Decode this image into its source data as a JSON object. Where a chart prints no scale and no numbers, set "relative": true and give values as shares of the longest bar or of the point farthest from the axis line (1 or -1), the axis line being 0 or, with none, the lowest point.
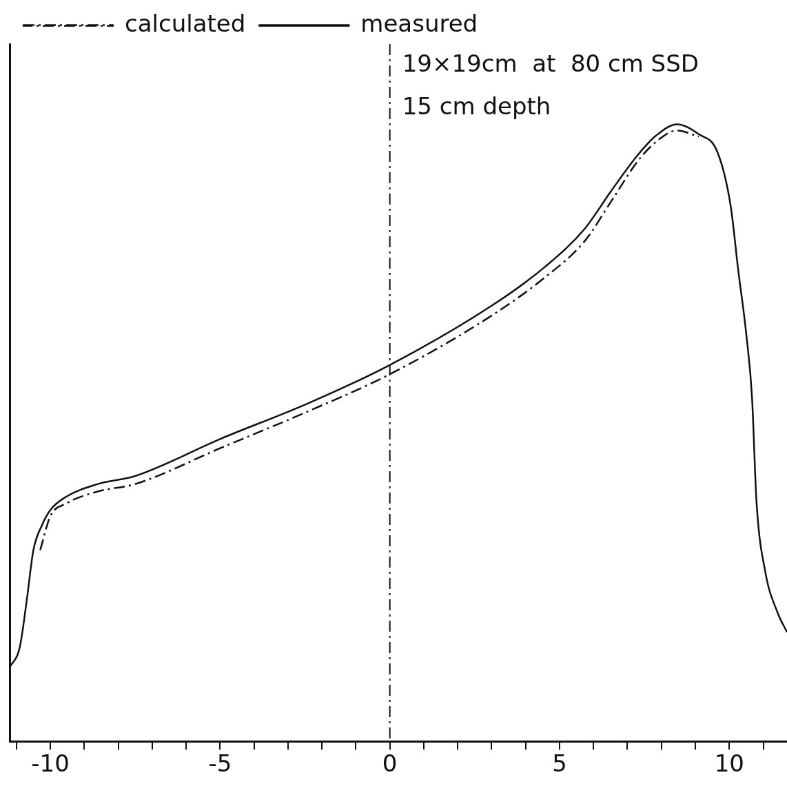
{
  "chart_data": {
    "type": "line",
    "relative": true,
    "xlim": [
      -11.2,
      11.7
    ],
    "xticks": [
      {
        "value": -11,
        "label": null
      },
      -10,
      {
        "value": -9,
        "label": null
      },
      {
        "value": -8,
        "label": null
      },
      {
        "value": -7,
        "label": null
      },
      {
        "value": -6,
        "label": null
      },
      -5,
      {
        "value": -4,
        "label": null
      },
      {
        "value": -3,
        "label": null
      },
      {
        "value": -2,
        "label": null
      },
      {
        "value": -1,
        "label": null
      },
      0,
      {
        "value": 1,
        "label": null
      },
      {
        "value": 2,
        "label": null
      },
      {
        "value": 3,
        "label": null
      },
      {
        "value": 4,
        "label": null
      },
      5,
      {
        "value": 6,
        "label": null
      },
      {
        "value": 7,
        "label": null
      },
      {
        "value": 8,
        "label": null
      },
      {
        "value": 9,
        "label": null
      },
      10,
      {
        "value": 11,
        "label": null
      }
    ],
    "series": [
      {
        "name": "calculated",
        "color": "#111111",
        "line_style": "dashed",
        "x": [
          -10.3,
          -10,
          -9.55,
          -8.6,
          -7.5,
          -5,
          -2.4,
          0,
          3.0,
          4.57,
          5.73,
          6.52,
          7.3,
          7.85,
          8.46,
          9.1
        ],
        "values": [
          0.31,
          0.365,
          0.385,
          0.405,
          0.417,
          0.475,
          0.535,
          0.595,
          0.69,
          0.752,
          0.81,
          0.875,
          0.94,
          0.972,
          0.99,
          0.98
        ]
      },
      {
        "name": "measured",
        "color": "#111111",
        "line_style": "solid",
        "x": [
          -11.2,
          -10.9,
          -10.7,
          -10.5,
          -10.25,
          -10,
          -9.55,
          -8.6,
          -7.5,
          -5,
          -2.4,
          0,
          3.0,
          4.57,
          5.73,
          6.52,
          7.3,
          7.85,
          8.46,
          9.1,
          9.65,
          10.04,
          10.26,
          10.5,
          10.67,
          10.8,
          11.06,
          11.42,
          11.7
        ],
        "values": [
          0.12,
          0.153,
          0.227,
          0.31,
          0.35,
          0.375,
          0.396,
          0.417,
          0.43,
          0.49,
          0.548,
          0.61,
          0.706,
          0.769,
          0.83,
          0.892,
          0.95,
          0.982,
          1,
          0.984,
          0.955,
          0.868,
          0.765,
          0.66,
          0.557,
          0.39,
          0.275,
          0.209,
          0.177
        ]
      }
    ],
    "ref_lines": [
      {
        "axis": "x",
        "value": 0,
        "line_style": "dashed"
      }
    ],
    "annotations": [
      "19×19cm  at  80 cm SSD",
      "15 cm depth"
    ],
    "legend": "top left",
    "grid": false
  }
}
